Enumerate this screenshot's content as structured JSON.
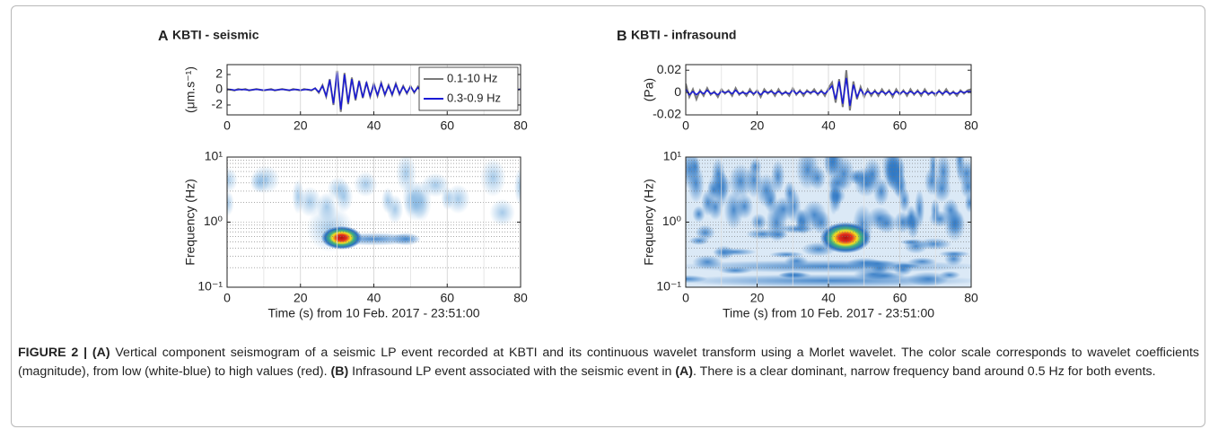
{
  "chart_data": [
    {
      "type": "line",
      "panel": "A",
      "title": "KBTI - seismic",
      "ylabel": "(μm.s⁻¹)",
      "x": [
        0,
        1,
        2,
        3,
        4,
        5,
        6,
        7,
        8,
        9,
        10,
        11,
        12,
        13,
        14,
        15,
        16,
        17,
        18,
        19,
        20,
        21,
        22,
        23,
        24,
        25,
        26,
        27,
        28,
        29,
        30,
        31,
        32,
        33,
        34,
        35,
        36,
        37,
        38,
        39,
        40,
        41,
        42,
        43,
        44,
        45,
        46,
        47,
        48,
        49,
        50,
        51,
        52,
        53,
        54,
        55,
        56,
        57,
        58,
        59,
        60,
        61,
        62,
        63,
        64,
        65,
        66,
        67,
        68,
        69,
        70,
        71,
        72,
        73,
        74,
        75,
        76,
        77,
        78,
        79,
        80
      ],
      "series": [
        {
          "name": "0.1-10 Hz",
          "color": "#7a7a7a",
          "values": [
            0.1,
            0,
            -0.1,
            0.1,
            0,
            0.1,
            -0.1,
            0,
            0.1,
            0,
            -0.1,
            0,
            0.1,
            -0.1,
            0,
            0.1,
            0,
            -0.1,
            0.1,
            0,
            -0.1,
            0.1,
            0,
            -0.1,
            0.2,
            -0.4,
            0.6,
            -0.9,
            1.4,
            -2.0,
            2.5,
            -2.9,
            2.2,
            -1.9,
            1.6,
            -1.4,
            1.2,
            -1.1,
            1.0,
            -0.9,
            0.8,
            -0.8,
            0.9,
            -0.7,
            0.6,
            -0.7,
            0.8,
            -0.6,
            0.5,
            -0.5,
            0.5,
            -0.4,
            0.4,
            -0.4,
            0.3,
            -0.3,
            0.3,
            -0.3,
            0.2,
            -0.3,
            0.2,
            -0.2,
            0.2,
            -0.1,
            0.1,
            -0.1,
            0.1,
            0,
            -0.1,
            0.1,
            0,
            -0.1,
            0.1,
            0,
            -0.1,
            0.1,
            0,
            0.1,
            -0.1,
            0,
            0.1
          ]
        },
        {
          "name": "0.3-0.9 Hz",
          "color": "#1a1ad6",
          "values": [
            0,
            0.05,
            -0.05,
            0,
            0.05,
            0,
            -0.05,
            0,
            0.05,
            0,
            -0.05,
            0,
            0,
            -0.05,
            0,
            0.05,
            0,
            -0.05,
            0,
            0.05,
            -0.05,
            0,
            0.05,
            -0.05,
            0.2,
            -0.3,
            0.5,
            -0.8,
            1.3,
            -1.8,
            2.3,
            -2.6,
            2.0,
            -1.7,
            1.4,
            -1.2,
            1.1,
            -1.0,
            0.9,
            -0.8,
            0.7,
            -0.7,
            0.8,
            -0.6,
            0.5,
            -0.6,
            0.7,
            -0.5,
            0.4,
            -0.4,
            0.4,
            -0.3,
            0.3,
            -0.3,
            0.2,
            -0.2,
            0.2,
            -0.2,
            0.1,
            -0.2,
            0.1,
            -0.1,
            0.1,
            -0.1,
            0.05,
            -0.05,
            0.05,
            0,
            -0.05,
            0.05,
            0,
            -0.05,
            0.05,
            0,
            -0.05,
            0.05,
            0,
            0.05,
            -0.05,
            0,
            0.05
          ]
        }
      ],
      "xlim": [
        0,
        80
      ],
      "xticks": [
        0,
        20,
        40,
        60,
        80
      ],
      "ylim": [
        -3.3,
        3.3
      ],
      "yticks": [
        -2,
        0,
        2
      ],
      "grid": true,
      "legend": "upper right"
    },
    {
      "type": "spectrogram",
      "xlabel": "Time (s) from 10 Feb. 2017 - 23:51:00",
      "ylabel": "Frequency (Hz)",
      "xlim": [
        0,
        80
      ],
      "xticks": [
        0,
        20,
        40,
        60,
        80
      ],
      "ylim": [
        0.1,
        10
      ],
      "log_y": true,
      "yticks": [
        {
          "value": 0.1,
          "label": "10⁻¹"
        },
        {
          "value": 1,
          "label": "10⁰"
        },
        {
          "value": 10,
          "label": "10¹"
        }
      ],
      "grid": true
    },
    {
      "type": "line",
      "panel": "B",
      "title": "KBTI - infrasound",
      "ylabel": "(Pa)",
      "x": [
        0,
        1,
        2,
        3,
        4,
        5,
        6,
        7,
        8,
        9,
        10,
        11,
        12,
        13,
        14,
        15,
        16,
        17,
        18,
        19,
        20,
        21,
        22,
        23,
        24,
        25,
        26,
        27,
        28,
        29,
        30,
        31,
        32,
        33,
        34,
        35,
        36,
        37,
        38,
        39,
        40,
        41,
        42,
        43,
        44,
        45,
        46,
        47,
        48,
        49,
        50,
        51,
        52,
        53,
        54,
        55,
        56,
        57,
        58,
        59,
        60,
        61,
        62,
        63,
        64,
        65,
        66,
        67,
        68,
        69,
        70,
        71,
        72,
        73,
        74,
        75,
        76,
        77,
        78,
        79,
        80
      ],
      "series": [
        {
          "color": "#7a7a7a",
          "values": [
            0.008,
            -0.004,
            0.003,
            -0.006,
            0.002,
            -0.003,
            0.004,
            -0.002,
            0.001,
            -0.004,
            0.003,
            -0.001,
            0.002,
            -0.003,
            0.004,
            -0.002,
            0.001,
            -0.003,
            0.003,
            -0.002,
            0.002,
            -0.004,
            0.003,
            -0.001,
            0.002,
            -0.003,
            0.003,
            -0.002,
            0.001,
            -0.003,
            0.004,
            -0.002,
            0.002,
            -0.003,
            0.002,
            -0.001,
            0.003,
            -0.002,
            0.002,
            -0.003,
            0.004,
            0.009,
            -0.009,
            0.012,
            -0.013,
            0.02,
            -0.016,
            0.01,
            -0.006,
            0.005,
            -0.004,
            0.003,
            -0.003,
            0.002,
            -0.003,
            0.003,
            -0.002,
            0.002,
            -0.004,
            0.003,
            -0.002,
            0.002,
            -0.003,
            0.003,
            -0.002,
            0.002,
            -0.003,
            0.003,
            -0.002,
            0.001,
            -0.003,
            0.002,
            -0.002,
            0.003,
            -0.002,
            0.001,
            -0.003,
            0.002,
            -0.001,
            0.002,
            0.003
          ]
        },
        {
          "color": "#1a1ad6",
          "values": [
            0.003,
            -0.002,
            0.001,
            -0.002,
            0.001,
            -0.001,
            0.002,
            -0.001,
            0,
            -0.002,
            0.001,
            0,
            0.001,
            -0.001,
            0.002,
            -0.001,
            0,
            -0.001,
            0.001,
            -0.001,
            0.001,
            -0.002,
            0.001,
            0,
            0.001,
            -0.001,
            0.001,
            -0.001,
            0,
            -0.001,
            0.002,
            -0.001,
            0.001,
            -0.001,
            0.001,
            0,
            0.001,
            -0.001,
            0.001,
            -0.001,
            0.002,
            0.006,
            -0.006,
            0.01,
            -0.01,
            0.013,
            -0.012,
            0.007,
            -0.004,
            0.003,
            -0.002,
            0.001,
            -0.001,
            0.001,
            -0.001,
            0.001,
            -0.001,
            0.001,
            -0.002,
            0.001,
            -0.001,
            0.001,
            -0.001,
            0.001,
            -0.001,
            0.001,
            -0.001,
            0.001,
            -0.001,
            0,
            -0.001,
            0.001,
            -0.001,
            0.001,
            -0.001,
            0,
            -0.001,
            0.001,
            0,
            0.001,
            0.001
          ]
        }
      ],
      "xlim": [
        0,
        80
      ],
      "xticks": [
        0,
        20,
        40,
        60,
        80
      ],
      "ylim": [
        -0.02,
        0.025
      ],
      "yticks": [
        -0.02,
        0,
        0.02
      ],
      "grid": true
    },
    {
      "type": "spectrogram",
      "xlabel": "Time (s) from 10 Feb. 2017 - 23:51:00",
      "ylabel": "Frequency (Hz)",
      "xlim": [
        0,
        80
      ],
      "xticks": [
        0,
        20,
        40,
        60,
        80
      ],
      "ylim": [
        0.1,
        10
      ],
      "log_y": true,
      "yticks": [
        {
          "value": 0.1,
          "label": "10⁻¹"
        },
        {
          "value": 1,
          "label": "10⁰"
        },
        {
          "value": 10,
          "label": "10¹"
        }
      ],
      "grid": true
    }
  ],
  "caption": [
    "FIGURE 2 | (A)",
    " Vertical component seismogram of a seismic LP event recorded at KBTI and its continuous wavelet transform using a Morlet wavelet. The color scale corresponds to wavelet coefficients (magnitude), from low (white-blue) to high values (red). ",
    "(B)",
    " Infrasound LP event associated with the seismic event in ",
    "(A)",
    ". There is a clear dominant, narrow frequency band around 0.5 Hz for both events."
  ]
}
